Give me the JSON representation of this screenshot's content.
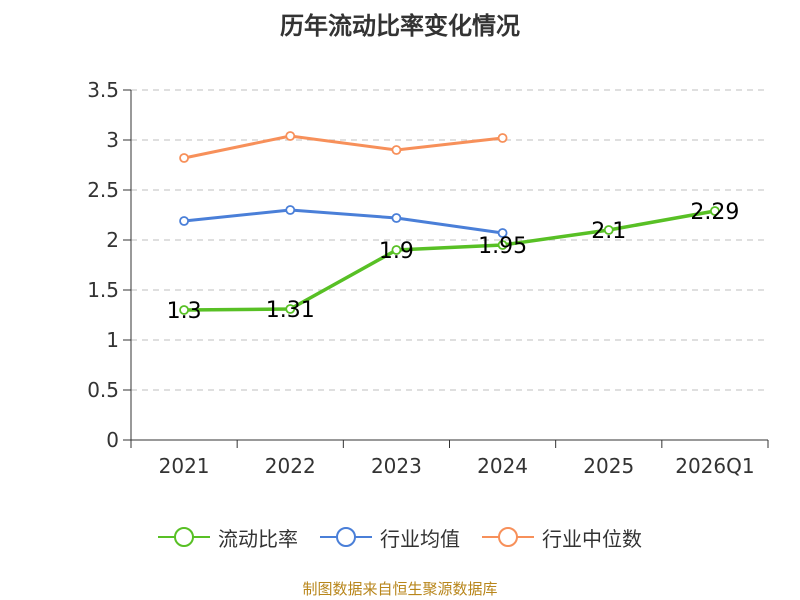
{
  "chart_data": {
    "type": "line",
    "title": "历年流动比率变化情况",
    "categories": [
      "2021",
      "2022",
      "2023",
      "2024",
      "2025",
      "2026Q1"
    ],
    "ylim": [
      0,
      3.5
    ],
    "yticks": [
      0,
      0.5,
      1,
      1.5,
      2,
      2.5,
      3,
      3.5
    ],
    "ytick_labels": [
      "0",
      "0.5",
      "1",
      "1.5",
      "2",
      "2.5",
      "3",
      "3.5"
    ],
    "grid": true,
    "legend_position": "bottom",
    "series": [
      {
        "name": "流动比率",
        "color": "#58c025",
        "values": [
          1.3,
          1.31,
          1.9,
          1.95,
          2.1,
          2.29
        ],
        "labels": [
          "1.3",
          "1.31",
          "1.9",
          "1.95",
          "2.1",
          "2.29"
        ]
      },
      {
        "name": "行业均值",
        "color": "#4a7fd8",
        "values": [
          2.19,
          2.3,
          2.22,
          2.07,
          null,
          null
        ]
      },
      {
        "name": "行业中位数",
        "color": "#f7905a",
        "values": [
          2.82,
          3.04,
          2.9,
          3.02,
          null,
          null
        ]
      }
    ]
  },
  "source": "制图数据来自恒生聚源数据库"
}
